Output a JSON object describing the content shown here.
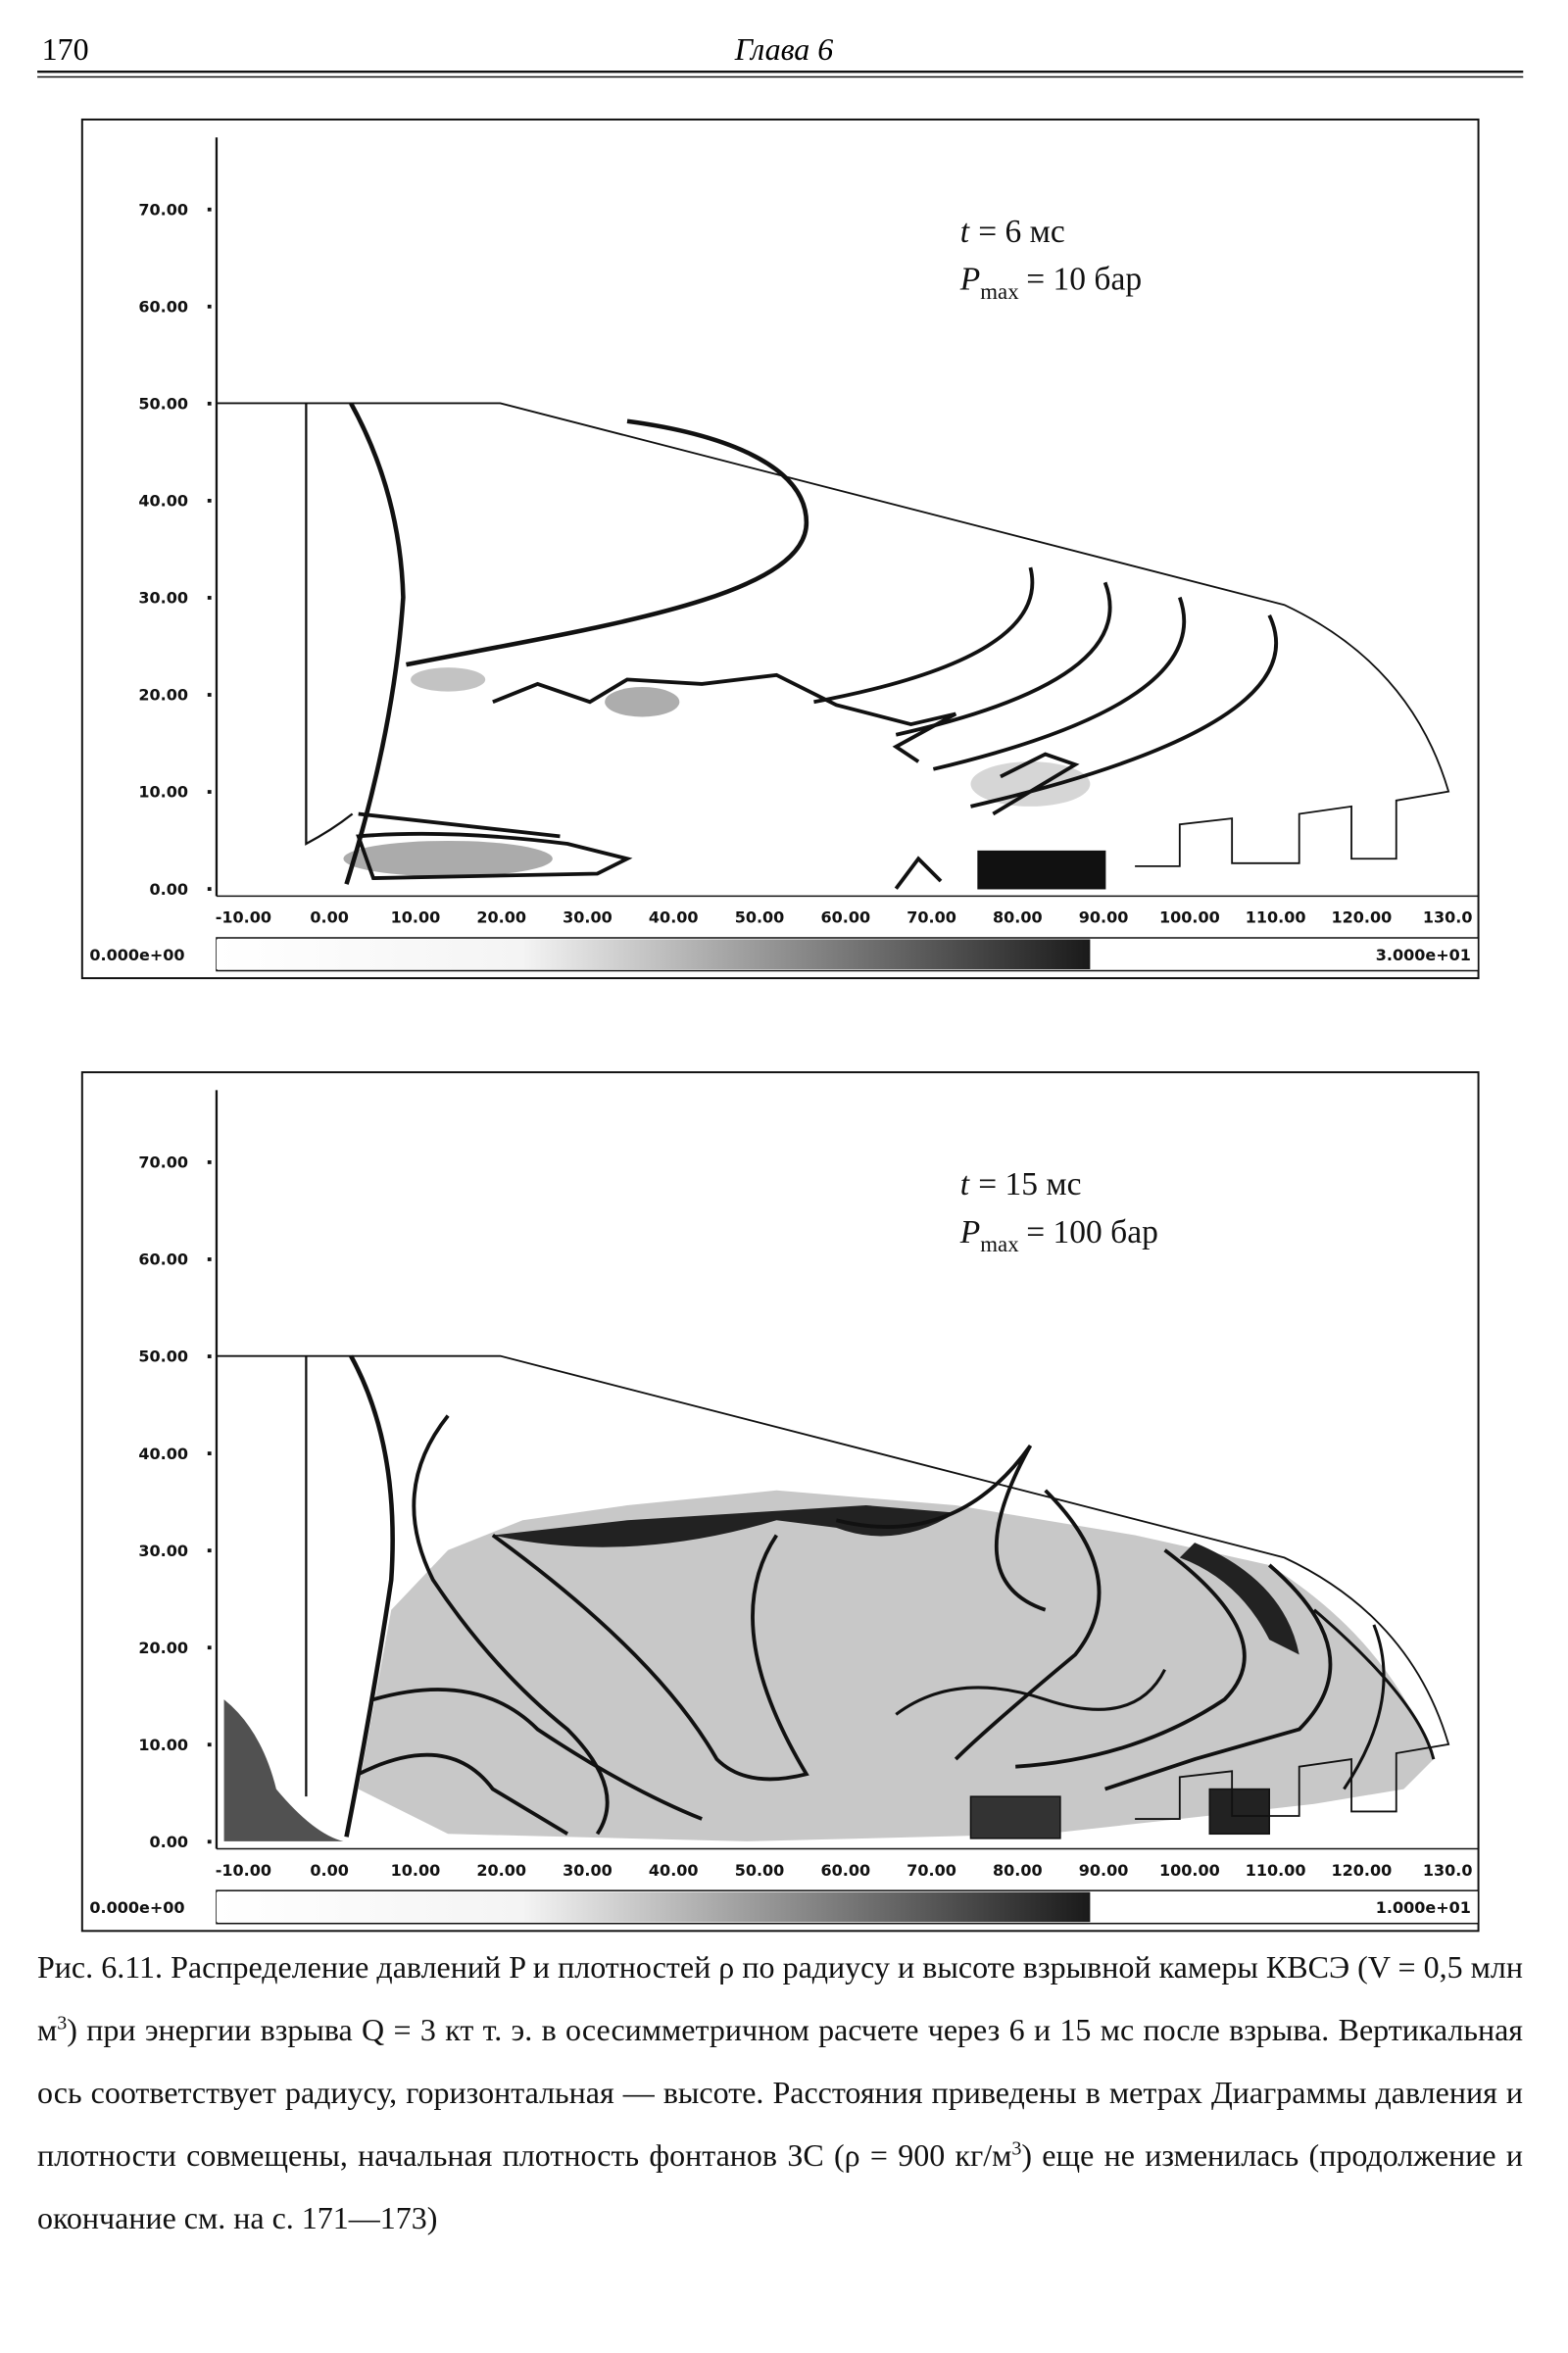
{
  "header": {
    "page_number": "170",
    "chapter": "Глава 6"
  },
  "figures": [
    {
      "yticks": [
        "70.00",
        "60.00",
        "50.00",
        "40.00",
        "30.00",
        "20.00",
        "10.00",
        "0.00"
      ],
      "xticks": [
        "-10.00",
        "0.00",
        "10.00",
        "20.00",
        "30.00",
        "40.00",
        "50.00",
        "60.00",
        "70.00",
        "80.00",
        "90.00",
        "100.00",
        "110.00",
        "120.00",
        "130.0"
      ],
      "annotation": {
        "time_symbol": "t",
        "time_value": "= 6 мс",
        "pressure_symbol": "P",
        "pressure_subscript": "max",
        "pressure_value": "= 10 бар"
      },
      "colorbar": {
        "min_label": "0.000e+00",
        "max_label": "3.000e+01"
      }
    },
    {
      "yticks": [
        "70.00",
        "60.00",
        "50.00",
        "40.00",
        "30.00",
        "20.00",
        "10.00",
        "0.00"
      ],
      "xticks": [
        "-10.00",
        "0.00",
        "10.00",
        "20.00",
        "30.00",
        "40.00",
        "50.00",
        "60.00",
        "70.00",
        "80.00",
        "90.00",
        "100.00",
        "110.00",
        "120.00",
        "130.0"
      ],
      "annotation": {
        "time_symbol": "t",
        "time_value": "= 15 мс",
        "pressure_symbol": "P",
        "pressure_subscript": "max",
        "pressure_value": "= 100 бар"
      },
      "colorbar": {
        "min_label": "0.000e+00",
        "max_label": "1.000e+01"
      }
    }
  ],
  "caption": [
    "Рис. 6.11. Распределение давлений P и плотностей ρ по радиусу и высоте взрывной камеры КВСЭ (V = 0,5 млн м",
    "3",
    ") при энергии взрыва Q = 3 кт т. э. в осесимметричном расчете через 6 и 15 мс после взрыва. Вертикальная ось соответствует радиусу, горизонтальная — высоте. Расстояния приведены в метрах Диаграммы давления и плотности совмещены, начальная плотность фонтанов ЗС (ρ = 900 кг/м",
    "3",
    ") еще не изменилась (продолжение и окончание см. на с. 171—173)"
  ]
}
